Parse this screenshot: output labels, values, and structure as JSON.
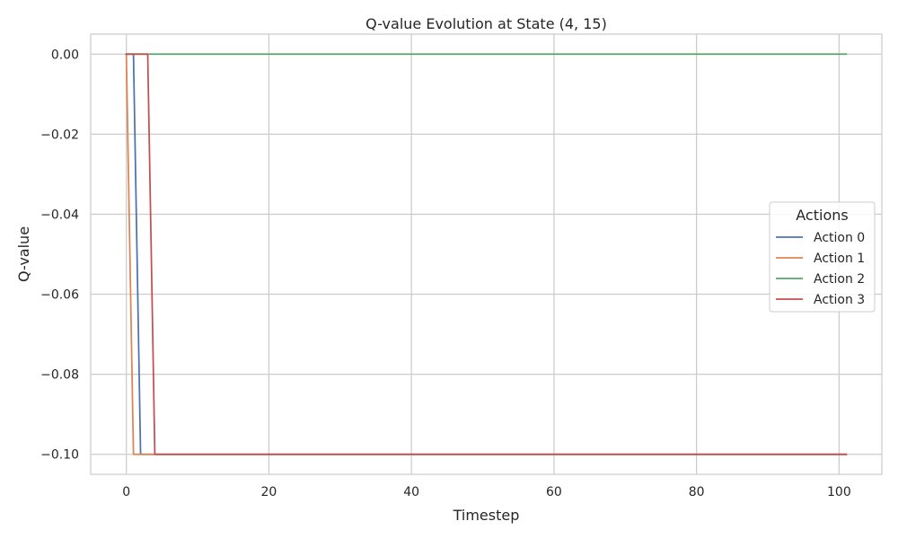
{
  "chart_data": {
    "type": "line",
    "title": "Q-value Evolution at State (4, 15)",
    "xlabel": "Timestep",
    "ylabel": "Q-value",
    "xlim": [
      -5,
      106
    ],
    "ylim": [
      -0.105,
      0.005
    ],
    "xticks": [
      0,
      20,
      40,
      60,
      80,
      100
    ],
    "xtick_labels": [
      "0",
      "20",
      "40",
      "60",
      "80",
      "100"
    ],
    "yticks": [
      0.0,
      -0.02,
      -0.04,
      -0.06,
      -0.08,
      -0.1
    ],
    "ytick_labels": [
      "0.00",
      "−0.02",
      "−0.04",
      "−0.06",
      "−0.08",
      "−0.10"
    ],
    "grid": true,
    "legend": {
      "title": "Actions",
      "placement": "center-right"
    },
    "series": [
      {
        "name": "Action 0",
        "color": "#4c72b0",
        "x": [
          0,
          1,
          2,
          101
        ],
        "y": [
          0.0,
          0.0,
          -0.1,
          -0.1
        ]
      },
      {
        "name": "Action 1",
        "color": "#dd8452",
        "x": [
          0,
          1,
          101
        ],
        "y": [
          0.0,
          -0.1,
          -0.1
        ]
      },
      {
        "name": "Action 2",
        "color": "#55a868",
        "x": [
          0,
          101
        ],
        "y": [
          0.0,
          0.0
        ]
      },
      {
        "name": "Action 3",
        "color": "#c44e52",
        "x": [
          0,
          3,
          4,
          101
        ],
        "y": [
          0.0,
          0.0,
          -0.1,
          -0.1
        ]
      }
    ]
  }
}
